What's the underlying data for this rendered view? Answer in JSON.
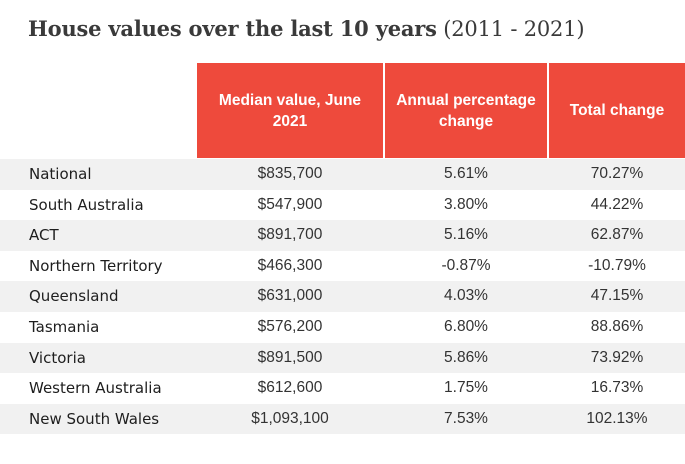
{
  "chart_data": {
    "type": "table",
    "title": "House values over the last 10 years",
    "subtitle": "(2011 - 2021)",
    "columns": [
      "",
      "Median value, June 2021",
      "Annual percentage change",
      "Total change"
    ],
    "rows": [
      {
        "region": "National",
        "median": "$835,700",
        "annual": "5.61%",
        "total": "70.27%"
      },
      {
        "region": "South Australia",
        "median": "$547,900",
        "annual": "3.80%",
        "total": "44.22%"
      },
      {
        "region": "ACT",
        "median": "$891,700",
        "annual": "5.16%",
        "total": "62.87%"
      },
      {
        "region": "Northern Territory",
        "median": "$466,300",
        "annual": "-0.87%",
        "total": "-10.79%"
      },
      {
        "region": "Queensland",
        "median": "$631,000",
        "annual": "4.03%",
        "total": "47.15%"
      },
      {
        "region": "Tasmania",
        "median": "$576,200",
        "annual": "6.80%",
        "total": "88.86%"
      },
      {
        "region": "Victoria",
        "median": "$891,500",
        "annual": "5.86%",
        "total": "73.92%"
      },
      {
        "region": "Western Australia",
        "median": "$612,600",
        "annual": "1.75%",
        "total": "16.73%"
      },
      {
        "region": "New South Wales",
        "median": "$1,093,100",
        "annual": "7.53%",
        "total": "102.13%"
      }
    ],
    "colors": {
      "header_background": "#ee4a3c",
      "header_text": "#ffffff",
      "shaded_row": "#f1f1f1",
      "title_text": "#3a3a3a"
    }
  }
}
